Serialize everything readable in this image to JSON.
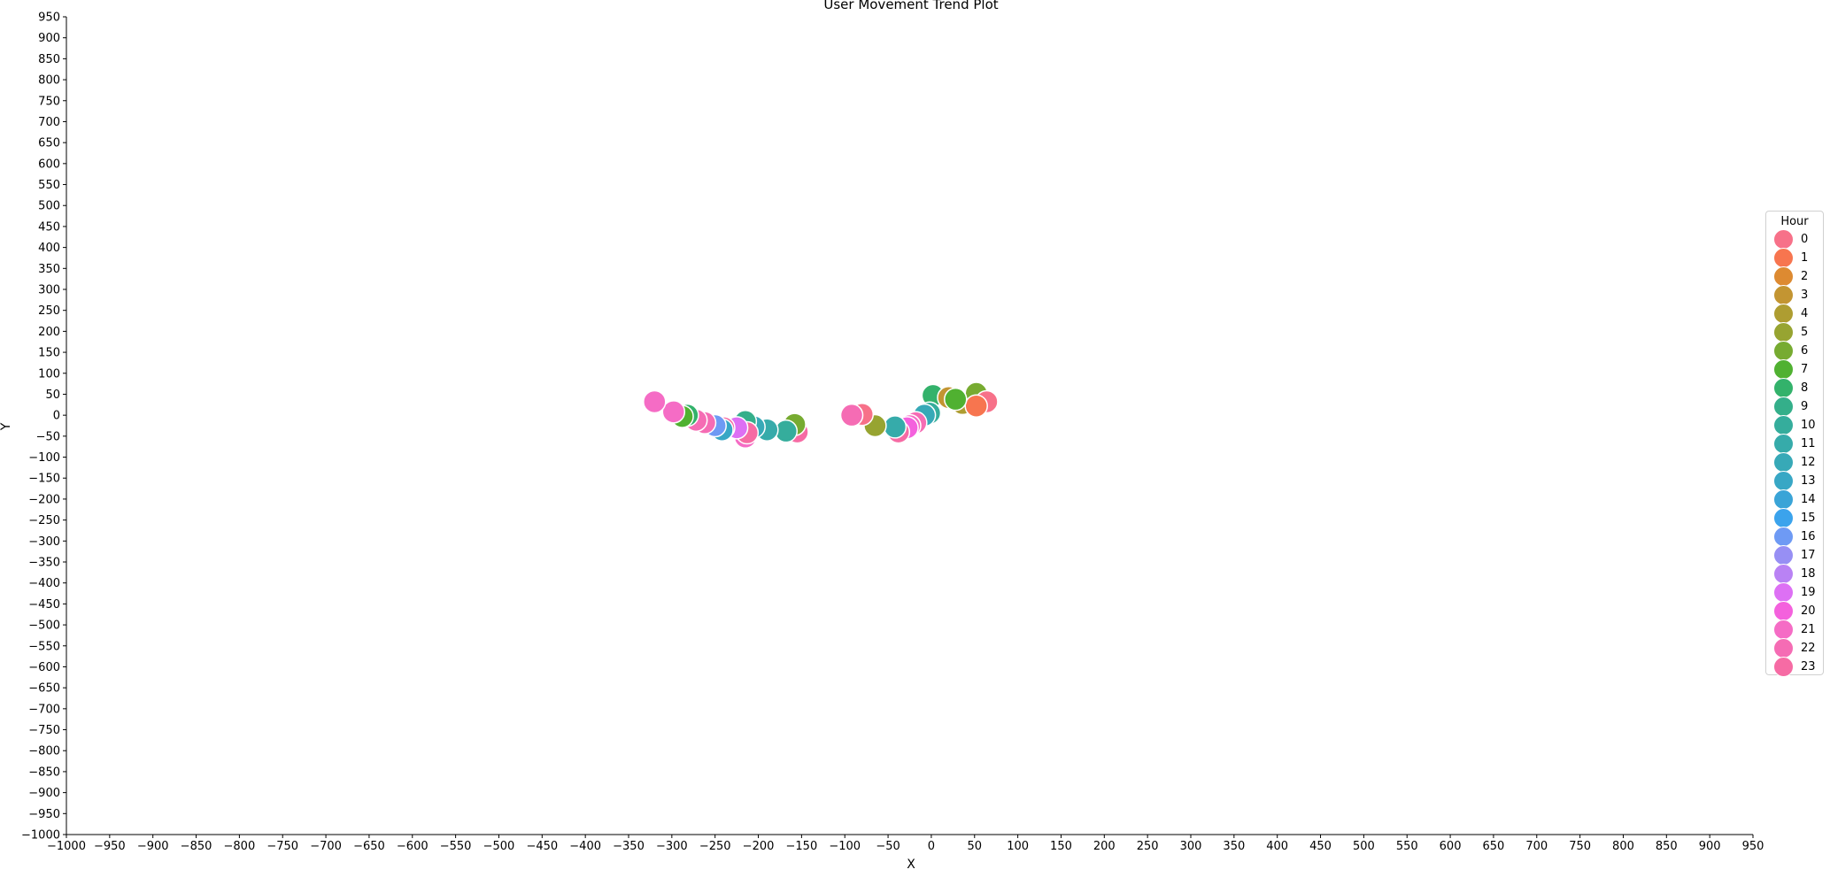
{
  "chart_data": {
    "type": "scatter",
    "title": "User Movement Trend Plot",
    "xlabel": "X",
    "ylabel": "Y",
    "xlim": [
      -1000,
      950
    ],
    "ylim": [
      -1000,
      950
    ],
    "x_tick_step": 50,
    "y_tick_step": 50,
    "grid": false,
    "legend": {
      "title": "Hour",
      "placement": "right",
      "entries": [
        {
          "label": "0",
          "color": "#f77189"
        },
        {
          "label": "1",
          "color": "#f7754f"
        },
        {
          "label": "2",
          "color": "#dd8a31"
        },
        {
          "label": "3",
          "color": "#c39532"
        },
        {
          "label": "4",
          "color": "#ae9d31"
        },
        {
          "label": "5",
          "color": "#97a431"
        },
        {
          "label": "6",
          "color": "#77ab31"
        },
        {
          "label": "7",
          "color": "#50b131"
        },
        {
          "label": "8",
          "color": "#33b26b"
        },
        {
          "label": "9",
          "color": "#34af8a"
        },
        {
          "label": "10",
          "color": "#35ad9c"
        },
        {
          "label": "11",
          "color": "#36abaa"
        },
        {
          "label": "12",
          "color": "#37a9b7"
        },
        {
          "label": "13",
          "color": "#38a7c5"
        },
        {
          "label": "14",
          "color": "#3aa4d7"
        },
        {
          "label": "15",
          "color": "#3ba3ec"
        },
        {
          "label": "16",
          "color": "#6e9af4"
        },
        {
          "label": "17",
          "color": "#978ff4"
        },
        {
          "label": "18",
          "color": "#b982f4"
        },
        {
          "label": "19",
          "color": "#dd70f4"
        },
        {
          "label": "20",
          "color": "#f461dd"
        },
        {
          "label": "21",
          "color": "#f56cc5"
        },
        {
          "label": "22",
          "color": "#f56cb4"
        },
        {
          "label": "23",
          "color": "#f66ba4"
        }
      ]
    },
    "points": [
      {
        "x": 2,
        "y": 47,
        "hour": 8
      },
      {
        "x": 20,
        "y": 42,
        "hour": 3
      },
      {
        "x": 36,
        "y": 28,
        "hour": 4
      },
      {
        "x": 52,
        "y": 52,
        "hour": 6
      },
      {
        "x": 64,
        "y": 32,
        "hour": 0
      },
      {
        "x": 52,
        "y": 22,
        "hour": 1
      },
      {
        "x": 28,
        "y": 38,
        "hour": 7
      },
      {
        "x": -2,
        "y": 5,
        "hour": 10
      },
      {
        "x": -8,
        "y": 0,
        "hour": 12
      },
      {
        "x": -18,
        "y": -18,
        "hour": 22
      },
      {
        "x": -25,
        "y": -25,
        "hour": 21
      },
      {
        "x": -28,
        "y": -30,
        "hour": 20
      },
      {
        "x": -38,
        "y": -40,
        "hour": 23
      },
      {
        "x": -42,
        "y": -28,
        "hour": 11
      },
      {
        "x": -65,
        "y": -25,
        "hour": 5
      },
      {
        "x": -80,
        "y": 2,
        "hour": 0
      },
      {
        "x": -92,
        "y": 0,
        "hour": 22
      },
      {
        "x": -155,
        "y": -40,
        "hour": 23
      },
      {
        "x": -158,
        "y": -22,
        "hour": 6
      },
      {
        "x": -168,
        "y": -38,
        "hour": 10
      },
      {
        "x": -190,
        "y": -35,
        "hour": 11
      },
      {
        "x": -205,
        "y": -28,
        "hour": 12
      },
      {
        "x": -215,
        "y": -15,
        "hour": 9
      },
      {
        "x": -215,
        "y": -52,
        "hour": 21
      },
      {
        "x": -213,
        "y": -42,
        "hour": 23
      },
      {
        "x": -225,
        "y": -30,
        "hour": 19
      },
      {
        "x": -240,
        "y": -30,
        "hour": 23
      },
      {
        "x": -242,
        "y": -35,
        "hour": 13
      },
      {
        "x": -250,
        "y": -25,
        "hour": 16
      },
      {
        "x": -262,
        "y": -18,
        "hour": 22
      },
      {
        "x": -272,
        "y": -12,
        "hour": 22
      },
      {
        "x": -282,
        "y": 0,
        "hour": 8
      },
      {
        "x": -288,
        "y": -3,
        "hour": 7
      },
      {
        "x": -298,
        "y": 8,
        "hour": 21
      },
      {
        "x": -320,
        "y": 32,
        "hour": 21
      }
    ]
  }
}
